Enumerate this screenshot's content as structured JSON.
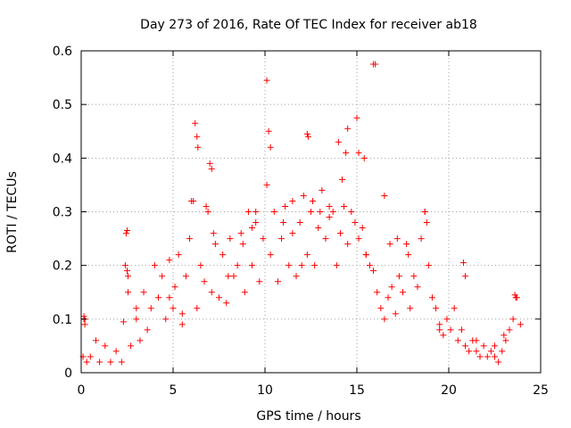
{
  "chart_data": {
    "type": "scatter",
    "title": "Day 273 of 2016, Rate Of TEC Index for receiver ab18",
    "xlabel": "GPS time / hours",
    "ylabel": "ROTI / TECUs",
    "xlim": [
      0,
      25
    ],
    "ylim": [
      0,
      0.6
    ],
    "xticks": [
      0,
      5,
      10,
      15,
      20,
      25
    ],
    "yticks": [
      0,
      0.1,
      0.2,
      0.3,
      0.4,
      0.5,
      0.6
    ],
    "xtick_labels": [
      "0",
      "5",
      "10",
      "15",
      "20",
      "25"
    ],
    "ytick_labels": [
      "0",
      "0.1",
      "0.2",
      "0.3",
      "0.4",
      "0.5",
      "0.6"
    ],
    "grid": true,
    "marker": "+",
    "color": "#ff0000",
    "series": [
      {
        "x": [
          0.1,
          0.15,
          0.2,
          0.3,
          0.5,
          0.8,
          1.0,
          1.3,
          1.6,
          1.9,
          2.2,
          2.4,
          2.45,
          2.5,
          2.55,
          2.7,
          3.0,
          3.2,
          3.4,
          3.6,
          3.8,
          4.0,
          4.2,
          4.4,
          4.6,
          4.8,
          5.0,
          5.1,
          5.3,
          5.5,
          5.7,
          5.9,
          6.1,
          6.3,
          6.5,
          6.7,
          6.9,
          7.1,
          7.3,
          7.5,
          7.7,
          7.9,
          8.1,
          8.3,
          8.5,
          8.7,
          8.9,
          9.1,
          9.3,
          9.5,
          9.7,
          9.9,
          10.1,
          10.3,
          10.5,
          10.7,
          10.9,
          11.1,
          11.3,
          11.5,
          11.7,
          11.9,
          12.1,
          12.3,
          12.5,
          12.7,
          12.9,
          13.1,
          13.3,
          13.5,
          13.7,
          13.9,
          14.1,
          14.3,
          14.5,
          14.7,
          14.9,
          15.1,
          15.3,
          15.5,
          15.7,
          15.9,
          16.1,
          16.3,
          16.5,
          16.7,
          16.9,
          17.1,
          17.3,
          17.5,
          17.7,
          17.9,
          18.1,
          18.3,
          18.5,
          18.7,
          18.9,
          19.1,
          19.3,
          19.5,
          19.7,
          19.9,
          20.1,
          20.3,
          20.5,
          20.7,
          20.9,
          21.1,
          21.3,
          21.5,
          21.7,
          21.9,
          22.1,
          22.3,
          22.5,
          22.7,
          22.9,
          23.1,
          23.3,
          23.5,
          23.7,
          23.9,
          6.2,
          6.3,
          6.35,
          7.0,
          7.1,
          6.0,
          10.1,
          10.2,
          10.3,
          12.3,
          12.35,
          14.0,
          14.4,
          14.5,
          15.0,
          15.1,
          15.4,
          15.9,
          16.0,
          20.8,
          20.9,
          23.6,
          23.65,
          2.5,
          2.55,
          0.15,
          0.2,
          6.8,
          7.2,
          9.3,
          9.5,
          11.0,
          11.5,
          13.0,
          13.5,
          14.2,
          16.5,
          17.8,
          18.7,
          18.8,
          2.3,
          3.0,
          4.8,
          5.5,
          8.0,
          8.8,
          12.0,
          12.6,
          15.5,
          16.8,
          17.2,
          19.5,
          21.5,
          22.5,
          23.0
        ],
        "y": [
          0.03,
          0.105,
          0.1,
          0.02,
          0.03,
          0.06,
          0.02,
          0.05,
          0.02,
          0.04,
          0.02,
          0.2,
          0.26,
          0.19,
          0.15,
          0.05,
          0.1,
          0.06,
          0.15,
          0.08,
          0.12,
          0.2,
          0.14,
          0.18,
          0.1,
          0.21,
          0.12,
          0.16,
          0.22,
          0.09,
          0.18,
          0.25,
          0.32,
          0.12,
          0.2,
          0.17,
          0.3,
          0.15,
          0.24,
          0.14,
          0.22,
          0.13,
          0.25,
          0.18,
          0.2,
          0.26,
          0.15,
          0.3,
          0.2,
          0.28,
          0.17,
          0.25,
          0.35,
          0.22,
          0.3,
          0.17,
          0.25,
          0.31,
          0.2,
          0.26,
          0.18,
          0.28,
          0.33,
          0.22,
          0.3,
          0.2,
          0.27,
          0.34,
          0.25,
          0.29,
          0.3,
          0.2,
          0.26,
          0.31,
          0.24,
          0.3,
          0.28,
          0.25,
          0.27,
          0.22,
          0.2,
          0.19,
          0.15,
          0.12,
          0.1,
          0.14,
          0.16,
          0.11,
          0.18,
          0.15,
          0.24,
          0.12,
          0.18,
          0.16,
          0.25,
          0.3,
          0.2,
          0.14,
          0.12,
          0.09,
          0.07,
          0.1,
          0.08,
          0.12,
          0.06,
          0.08,
          0.05,
          0.04,
          0.06,
          0.04,
          0.03,
          0.05,
          0.03,
          0.04,
          0.03,
          0.02,
          0.04,
          0.06,
          0.08,
          0.1,
          0.14,
          0.09,
          0.465,
          0.44,
          0.42,
          0.39,
          0.38,
          0.32,
          0.545,
          0.45,
          0.42,
          0.445,
          0.44,
          0.43,
          0.41,
          0.455,
          0.475,
          0.41,
          0.4,
          0.575,
          0.575,
          0.205,
          0.18,
          0.145,
          0.14,
          0.265,
          0.18,
          0.1,
          0.09,
          0.31,
          0.26,
          0.27,
          0.3,
          0.28,
          0.32,
          0.3,
          0.31,
          0.36,
          0.33,
          0.22,
          0.3,
          0.28,
          0.095,
          0.12,
          0.14,
          0.11,
          0.18,
          0.24,
          0.2,
          0.32,
          0.22,
          0.24,
          0.25,
          0.08,
          0.06,
          0.05,
          0.07
        ]
      }
    ]
  }
}
